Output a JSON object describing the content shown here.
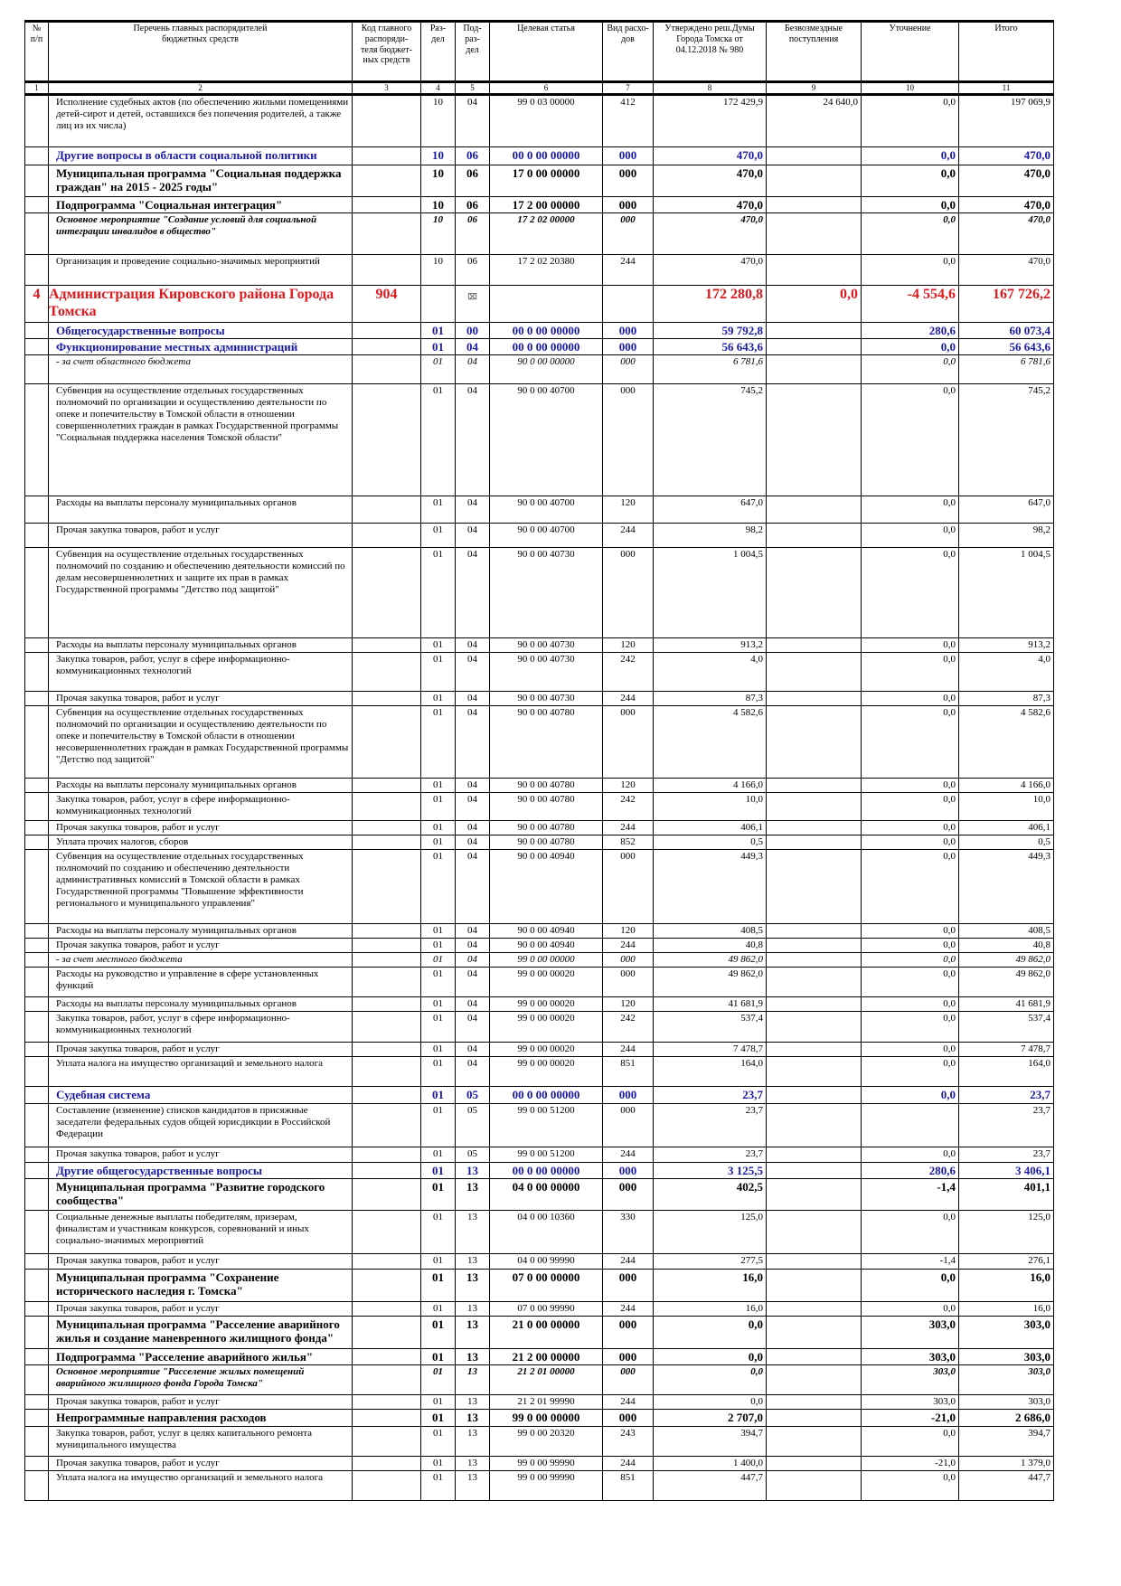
{
  "table": {
    "header": {
      "num": "№\nп/п",
      "name": "Перечень главных распорядителей\nбюджетных средств",
      "code": "Код главного\nраспоряди-\nтеля бюджет-\nных средств",
      "razdel": "Раз-\nдел",
      "podrazdel": "Под-\nраз-\nдел",
      "tsel": "Целевая статья",
      "vid": "Вид расхо-\nдов",
      "utv": "Утверждено реш.Думы\nГорода Томска от\n04.12.2018 № 980",
      "bezv": "Безвозмездные\nпоступления",
      "utoch": "Уточнение",
      "itogo": "Итого"
    },
    "column_numbers": [
      "1",
      "2",
      "3",
      "4",
      "5",
      "6",
      "7",
      "8",
      "9",
      "10",
      "11"
    ],
    "rows": [
      {
        "s": "n",
        "h": 58,
        "name": "Исполнение судебных актов (по обеспечению жильми помещениями детей-сирот и детей, оставшихся без попечения родителей, а также лиц из их числа)",
        "num": "",
        "code": "",
        "razdel": "10",
        "pod": "04",
        "tsel": "99 0 03 00000",
        "vid": "412",
        "utv": "172 429,9",
        "bezv": "24 640,0",
        "utoch": "0,0",
        "itogo": "197 069,9"
      },
      {
        "s": "blue",
        "h": 20,
        "name": "Другие вопросы в области социальной политики",
        "num": "",
        "code": "",
        "razdel": "10",
        "pod": "06",
        "tsel": "00 0 00 00000",
        "vid": "000",
        "utv": "470,0",
        "bezv": "",
        "utoch": "0,0",
        "itogo": "470,0"
      },
      {
        "s": "b",
        "h": 35,
        "name": "Муниципальная программа \"Социальная поддержка граждан\" на 2015 - 2025 годы\"",
        "num": "",
        "code": "",
        "razdel": "10",
        "pod": "06",
        "tsel": "17 0 00 00000",
        "vid": "000",
        "utv": "470,0",
        "bezv": "",
        "utoch": "0,0",
        "itogo": "470,0"
      },
      {
        "s": "b",
        "h": 16,
        "name": "Подпрограмма \"Социальная интеграция\"",
        "num": "",
        "code": "",
        "razdel": "10",
        "pod": "06",
        "tsel": "17 2 00 00000",
        "vid": "000",
        "utv": "470,0",
        "bezv": "",
        "utoch": "0,0",
        "itogo": "470,0"
      },
      {
        "s": "i",
        "h": 46,
        "name": "Основное мероприятие \"Создание условий для социальной интеграции инвалидов в общество\"",
        "num": "",
        "code": "",
        "razdel": "10",
        "pod": "06",
        "tsel": "17 2 02 00000",
        "vid": "000",
        "utv": "470,0",
        "bezv": "",
        "utoch": "0,0",
        "itogo": "470,0"
      },
      {
        "s": "n",
        "h": 34,
        "name": "Организация и проведение социально-значимых мероприятий",
        "num": "",
        "code": "",
        "razdel": "10",
        "pod": "06",
        "tsel": "17 2 02 20380",
        "vid": "244",
        "utv": "470,0",
        "bezv": "",
        "utoch": "0,0",
        "itogo": "470,0"
      },
      {
        "s": "red",
        "h": 40,
        "name": "Администрация Кировского района Города Томска",
        "num": "4",
        "code": "904",
        "razdel": "",
        "pod": "",
        "tsel": "",
        "vid": "",
        "utv": "172 280,8",
        "bezv": "0,0",
        "utoch": "-4 554,6",
        "itogo": "167 726,2",
        "sym": "⌧"
      },
      {
        "s": "blue",
        "h": 17,
        "name": "Общегосударственные вопросы",
        "num": "",
        "code": "",
        "razdel": "01",
        "pod": "00",
        "tsel": "00 0 00 00000",
        "vid": "000",
        "utv": "59 792,8",
        "bezv": "",
        "utoch": "280,6",
        "itogo": "60 073,4"
      },
      {
        "s": "blue",
        "h": 17,
        "name": "Функционирование местных администраций",
        "num": "",
        "code": "",
        "razdel": "01",
        "pod": "04",
        "tsel": "00 0 00 00000",
        "vid": "000",
        "utv": "56 643,6",
        "bezv": "",
        "utoch": "0,0",
        "itogo": "56 643,6"
      },
      {
        "s": "ii",
        "h": 32,
        "name": "- за счет областного бюджета",
        "num": "",
        "code": "",
        "razdel": "01",
        "pod": "04",
        "tsel": "90 0 00 00000",
        "vid": "000",
        "utv": "6 781,6",
        "bezv": "",
        "utoch": "0,0",
        "itogo": "6 781,6"
      },
      {
        "s": "n",
        "h": 124,
        "name": "Субвенция на осуществление отдельных государственных полномочий по организации и осуществлению деятельности по опеке и попечительству в Томской области в отношении совершеннолетних граждан в рамках Государственной программы \"Социальная поддержка населения Томской области\"",
        "num": "",
        "code": "",
        "razdel": "01",
        "pod": "04",
        "tsel": "90 0 00 40700",
        "vid": "000",
        "utv": "745,2",
        "bezv": "",
        "utoch": "0,0",
        "itogo": "745,2"
      },
      {
        "s": "n",
        "h": 30,
        "name": "Расходы на выплаты персоналу муниципальных органов",
        "num": "",
        "code": "",
        "razdel": "01",
        "pod": "04",
        "tsel": "90 0 00 40700",
        "vid": "120",
        "utv": "647,0",
        "bezv": "",
        "utoch": "0,0",
        "itogo": "647,0"
      },
      {
        "s": "n",
        "h": 27,
        "name": "Прочая закупка товаров, работ и услуг",
        "num": "",
        "code": "",
        "razdel": "01",
        "pod": "04",
        "tsel": "90 0 00 40700",
        "vid": "244",
        "utv": "98,2",
        "bezv": "",
        "utoch": "0,0",
        "itogo": "98,2"
      },
      {
        "s": "n",
        "h": 100,
        "name": "Субвенция на осуществление отдельных государственных полномочий по созданию и обеспечению деятельности комиссий по делам несовершеннолетних и защите их прав в рамках Государственной программы \"Детство под защитой\"",
        "num": "",
        "code": "",
        "razdel": "01",
        "pod": "04",
        "tsel": "90 0 00 40730",
        "vid": "000",
        "utv": "1 004,5",
        "bezv": "",
        "utoch": "0,0",
        "itogo": "1 004,5"
      },
      {
        "s": "n",
        "h": 16,
        "name": "Расходы на выплаты персоналу муниципальных органов",
        "num": "",
        "code": "",
        "razdel": "01",
        "pod": "04",
        "tsel": "90 0 00 40730",
        "vid": "120",
        "utv": "913,2",
        "bezv": "",
        "utoch": "0,0",
        "itogo": "913,2"
      },
      {
        "s": "n",
        "h": 43,
        "name": "Закупка товаров, работ, услуг в сфере информационно-коммуникационных технологий",
        "num": "",
        "code": "",
        "razdel": "01",
        "pod": "04",
        "tsel": "90 0 00 40730",
        "vid": "242",
        "utv": "4,0",
        "bezv": "",
        "utoch": "0,0",
        "itogo": "4,0"
      },
      {
        "s": "n",
        "h": 16,
        "name": "Прочая закупка товаров, работ и услуг",
        "num": "",
        "code": "",
        "razdel": "01",
        "pod": "04",
        "tsel": "90 0 00 40730",
        "vid": "244",
        "utv": "87,3",
        "bezv": "",
        "utoch": "0,0",
        "itogo": "87,3"
      },
      {
        "s": "n",
        "h": 80,
        "name": "Субвенция на осуществление отдельных государственных полномочий по организации и осуществлению деятельности по опеке и попечительству в Томской области в отношении несовершеннолетних граждан в рамках Государственной программы \"Детство под защитой\"",
        "num": "",
        "code": "",
        "razdel": "01",
        "pod": "04",
        "tsel": "90 0 00 40780",
        "vid": "000",
        "utv": "4 582,6",
        "bezv": "",
        "utoch": "0,0",
        "itogo": "4 582,6"
      },
      {
        "s": "n",
        "h": 16,
        "name": "Расходы на выплаты персоналу муниципальных органов",
        "num": "",
        "code": "",
        "razdel": "01",
        "pod": "04",
        "tsel": "90 0 00 40780",
        "vid": "120",
        "utv": "4 166,0",
        "bezv": "",
        "utoch": "0,0",
        "itogo": "4 166,0"
      },
      {
        "s": "n",
        "h": 31,
        "name": "Закупка товаров, работ, услуг в сфере информационно-коммуникационных технологий",
        "num": "",
        "code": "",
        "razdel": "01",
        "pod": "04",
        "tsel": "90 0 00 40780",
        "vid": "242",
        "utv": "10,0",
        "bezv": "",
        "utoch": "0,0",
        "itogo": "10,0"
      },
      {
        "s": "n",
        "h": 16,
        "name": "Прочая закупка товаров, работ и услуг",
        "num": "",
        "code": "",
        "razdel": "01",
        "pod": "04",
        "tsel": "90 0 00 40780",
        "vid": "244",
        "utv": "406,1",
        "bezv": "",
        "utoch": "0,0",
        "itogo": "406,1"
      },
      {
        "s": "n",
        "h": 15,
        "name": "Уплата прочих налогов, сборов",
        "num": "",
        "code": "",
        "razdel": "01",
        "pod": "04",
        "tsel": "90 0 00 40780",
        "vid": "852",
        "utv": "0,5",
        "bezv": "",
        "utoch": "0,0",
        "itogo": "0,5"
      },
      {
        "s": "n",
        "h": 82,
        "name": "Субвенция на осуществление отдельных государственных полномочий по созданию и обеспечению деятельности административных комиссий в Томской области в рамках Государственной программы \"Повышение эффективности регионального и муниципального управления\"",
        "num": "",
        "code": "",
        "razdel": "01",
        "pod": "04",
        "tsel": "90 0 00 40940",
        "vid": "000",
        "utv": "449,3",
        "bezv": "",
        "utoch": "0,0",
        "itogo": "449,3"
      },
      {
        "s": "n",
        "h": 16,
        "name": "Расходы на выплаты персоналу муниципальных органов",
        "num": "",
        "code": "",
        "razdel": "01",
        "pod": "04",
        "tsel": "90 0 00 40940",
        "vid": "120",
        "utv": "408,5",
        "bezv": "",
        "utoch": "0,0",
        "itogo": "408,5"
      },
      {
        "s": "n",
        "h": 16,
        "name": "Прочая закупка товаров, работ и услуг",
        "num": "",
        "code": "",
        "razdel": "01",
        "pod": "04",
        "tsel": "90 0 00 40940",
        "vid": "244",
        "utv": "40,8",
        "bezv": "",
        "utoch": "0,0",
        "itogo": "40,8"
      },
      {
        "s": "ii",
        "h": 16,
        "name": "- за счет местного бюджета",
        "num": "",
        "code": "",
        "razdel": "01",
        "pod": "04",
        "tsel": "99 0 00 00000",
        "vid": "000",
        "utv": "49 862,0",
        "bezv": "",
        "utoch": "0,0",
        "itogo": "49 862,0"
      },
      {
        "s": "n",
        "h": 33,
        "name": "Расходы на руководство и управление в сфере установленных функций",
        "num": "",
        "code": "",
        "razdel": "01",
        "pod": "04",
        "tsel": "99 0 00 00020",
        "vid": "000",
        "utv": "49 862,0",
        "bezv": "",
        "utoch": "0,0",
        "itogo": "49 862,0"
      },
      {
        "s": "n",
        "h": 16,
        "name": "Расходы на выплаты персоналу муниципальных органов",
        "num": "",
        "code": "",
        "razdel": "01",
        "pod": "04",
        "tsel": "99 0 00 00020",
        "vid": "120",
        "utv": "41 681,9",
        "bezv": "",
        "utoch": "0,0",
        "itogo": "41 681,9"
      },
      {
        "s": "n",
        "h": 34,
        "name": "Закупка товаров, работ, услуг в сфере информационно-коммуникационных технологий",
        "num": "",
        "code": "",
        "razdel": "01",
        "pod": "04",
        "tsel": "99 0 00 00020",
        "vid": "242",
        "utv": "537,4",
        "bezv": "",
        "utoch": "0,0",
        "itogo": "537,4"
      },
      {
        "s": "n",
        "h": 16,
        "name": "Прочая закупка товаров, работ и услуг",
        "num": "",
        "code": "",
        "razdel": "01",
        "pod": "04",
        "tsel": "99 0 00 00020",
        "vid": "244",
        "utv": "7 478,7",
        "bezv": "",
        "utoch": "0,0",
        "itogo": "7 478,7"
      },
      {
        "s": "n",
        "h": 33,
        "name": "Уплата налога на имущество организаций и земельного налога",
        "num": "",
        "code": "",
        "razdel": "01",
        "pod": "04",
        "tsel": "99 0 00 00020",
        "vid": "851",
        "utv": "164,0",
        "bezv": "",
        "utoch": "0,0",
        "itogo": "164,0"
      },
      {
        "s": "blue",
        "h": 17,
        "name": "Судебная система",
        "num": "",
        "code": "",
        "razdel": "01",
        "pod": "05",
        "tsel": "00 0 00 00000",
        "vid": "000",
        "utv": "23,7",
        "bezv": "",
        "utoch": "0,0",
        "itogo": "23,7"
      },
      {
        "s": "n",
        "h": 48,
        "name": "Составление (изменение) списков кандидатов в присяжные заседатели федеральных судов общей юрисдикции в Российской Федерации",
        "num": "",
        "code": "",
        "razdel": "01",
        "pod": "05",
        "tsel": "99 0 00 51200",
        "vid": "000",
        "utv": "23,7",
        "bezv": "",
        "utoch": "",
        "itogo": "23,7"
      },
      {
        "s": "n",
        "h": 17,
        "name": "Прочая закупка товаров, работ и услуг",
        "num": "",
        "code": "",
        "razdel": "01",
        "pod": "05",
        "tsel": "99 0 00 51200",
        "vid": "244",
        "utv": "23,7",
        "bezv": "",
        "utoch": "0,0",
        "itogo": "23,7"
      },
      {
        "s": "blue",
        "h": 18,
        "name": "Другие общегосударственные вопросы",
        "num": "",
        "code": "",
        "razdel": "01",
        "pod": "13",
        "tsel": "00 0 00 00000",
        "vid": "000",
        "utv": "3 125,5",
        "bezv": "",
        "utoch": "280,6",
        "itogo": "3 406,1"
      },
      {
        "s": "b",
        "h": 35,
        "name": "Муниципальная программа \"Развитие городского сообщества\"",
        "num": "",
        "code": "",
        "razdel": "01",
        "pod": "13",
        "tsel": "04 0 00 00000",
        "vid": "000",
        "utv": "402,5",
        "bezv": "",
        "utoch": "-1,4",
        "itogo": "401,1"
      },
      {
        "s": "n",
        "h": 48,
        "name": "Социальные денежные выплаты победителям, призерам, финалистам и участникам конкурсов, соревнований и иных социально-значимых мероприятий",
        "num": "",
        "code": "",
        "razdel": "01",
        "pod": "13",
        "tsel": "04 0 00 10360",
        "vid": "330",
        "utv": "125,0",
        "bezv": "",
        "utoch": "0,0",
        "itogo": "125,0"
      },
      {
        "s": "n",
        "h": 17,
        "name": "Прочая закупка товаров, работ и услуг",
        "num": "",
        "code": "",
        "razdel": "01",
        "pod": "13",
        "tsel": "04 0 00 99990",
        "vid": "244",
        "utv": "277,5",
        "bezv": "",
        "utoch": "-1,4",
        "itogo": "276,1"
      },
      {
        "s": "b",
        "h": 36,
        "name": "Муниципальная программа \"Сохранение исторического наследия г. Томска\"",
        "num": "",
        "code": "",
        "razdel": "01",
        "pod": "13",
        "tsel": "07 0 00 00000",
        "vid": "000",
        "utv": "16,0",
        "bezv": "",
        "utoch": "0,0",
        "itogo": "16,0"
      },
      {
        "s": "n",
        "h": 16,
        "name": "Прочая закупка товаров, работ и услуг",
        "num": "",
        "code": "",
        "razdel": "01",
        "pod": "13",
        "tsel": "07 0 00 99990",
        "vid": "244",
        "utv": "16,0",
        "bezv": "",
        "utoch": "0,0",
        "itogo": "16,0"
      },
      {
        "s": "b",
        "h": 36,
        "name": "Муниципальная программа \"Расселение аварийного жилья и создание маневренного жилищного фонда\"",
        "num": "",
        "code": "",
        "razdel": "01",
        "pod": "13",
        "tsel": "21 0 00 00000",
        "vid": "000",
        "utv": "0,0",
        "bezv": "",
        "utoch": "303,0",
        "itogo": "303,0"
      },
      {
        "s": "b",
        "h": 17,
        "name": "Подпрограмма \"Расселение аварийного жилья\"",
        "num": "",
        "code": "",
        "razdel": "01",
        "pod": "13",
        "tsel": "21 2 00 00000",
        "vid": "000",
        "utv": "0,0",
        "bezv": "",
        "utoch": "303,0",
        "itogo": "303,0"
      },
      {
        "s": "i",
        "h": 33,
        "name": "Основное мероприятие \"Расселение жилых помещений аварийного жилищного фонда Города Томска\"",
        "num": "",
        "code": "",
        "razdel": "01",
        "pod": "13",
        "tsel": "21 2 01 00000",
        "vid": "000",
        "utv": "0,0",
        "bezv": "",
        "utoch": "303,0",
        "itogo": "303,0"
      },
      {
        "s": "n",
        "h": 16,
        "name": "Прочая закупка товаров, работ и услуг",
        "num": "",
        "code": "",
        "razdel": "01",
        "pod": "13",
        "tsel": "21 2 01 99990",
        "vid": "244",
        "utv": "0,0",
        "bezv": "",
        "utoch": "303,0",
        "itogo": "303,0"
      },
      {
        "s": "b",
        "h": 17,
        "name": "Непрограммные направления расходов",
        "num": "",
        "code": "",
        "razdel": "01",
        "pod": "13",
        "tsel": "99 0 00 00000",
        "vid": "000",
        "utv": "2 707,0",
        "bezv": "",
        "utoch": "-21,0",
        "itogo": "2 686,0"
      },
      {
        "s": "n",
        "h": 33,
        "name": "Закупка товаров, работ, услуг в целях капитального ремонта муниципального имущества",
        "num": "",
        "code": "",
        "razdel": "01",
        "pod": "13",
        "tsel": "99 0 00 20320",
        "vid": "243",
        "utv": "394,7",
        "bezv": "",
        "utoch": "0,0",
        "itogo": "394,7"
      },
      {
        "s": "n",
        "h": 16,
        "name": "Прочая закупка товаров, работ и услуг",
        "num": "",
        "code": "",
        "razdel": "01",
        "pod": "13",
        "tsel": "99 0 00 99990",
        "vid": "244",
        "utv": "1 400,0",
        "bezv": "",
        "utoch": "-21,0",
        "itogo": "1 379,0"
      },
      {
        "s": "n",
        "h": 33,
        "name": "Уплата налога на имущество организаций и земельного налога",
        "num": "",
        "code": "",
        "razdel": "01",
        "pod": "13",
        "tsel": "99 0 00 99990",
        "vid": "851",
        "utv": "447,7",
        "bezv": "",
        "utoch": "0,0",
        "itogo": "447,7"
      }
    ]
  }
}
